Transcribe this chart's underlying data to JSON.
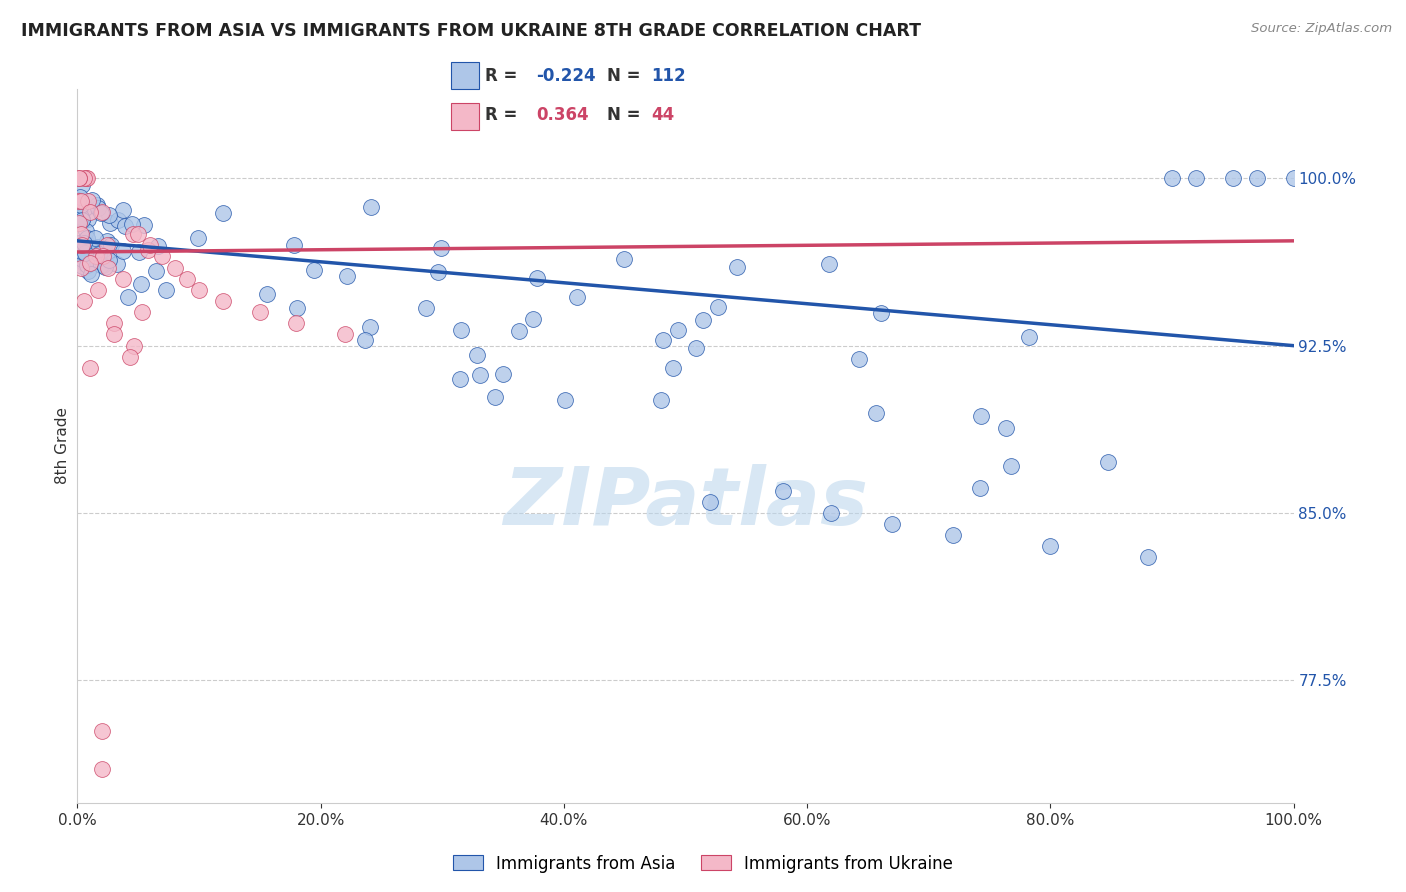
{
  "title": "IMMIGRANTS FROM ASIA VS IMMIGRANTS FROM UKRAINE 8TH GRADE CORRELATION CHART",
  "source": "Source: ZipAtlas.com",
  "ylabel": "8th Grade",
  "legend_label_blue": "Immigrants from Asia",
  "legend_label_pink": "Immigrants from Ukraine",
  "r_blue": -0.224,
  "n_blue": 112,
  "r_pink": 0.364,
  "n_pink": 44,
  "color_blue": "#aec6e8",
  "color_pink": "#f4b8c8",
  "line_color_blue": "#2255aa",
  "line_color_pink": "#cc4466",
  "ylim": [
    0.72,
    1.04
  ],
  "xlim": [
    0.0,
    1.0
  ],
  "background_color": "#ffffff",
  "watermark": "ZIPatlas",
  "blue_trend_start_y": 0.972,
  "blue_trend_end_y": 0.925,
  "pink_trend_start_y": 0.967,
  "pink_trend_end_y": 0.972,
  "right_yticks": [
    0.775,
    0.85,
    0.925,
    1.0
  ],
  "right_yticklabels": [
    "77.5%",
    "85.0%",
    "92.5%",
    "100.0%"
  ]
}
